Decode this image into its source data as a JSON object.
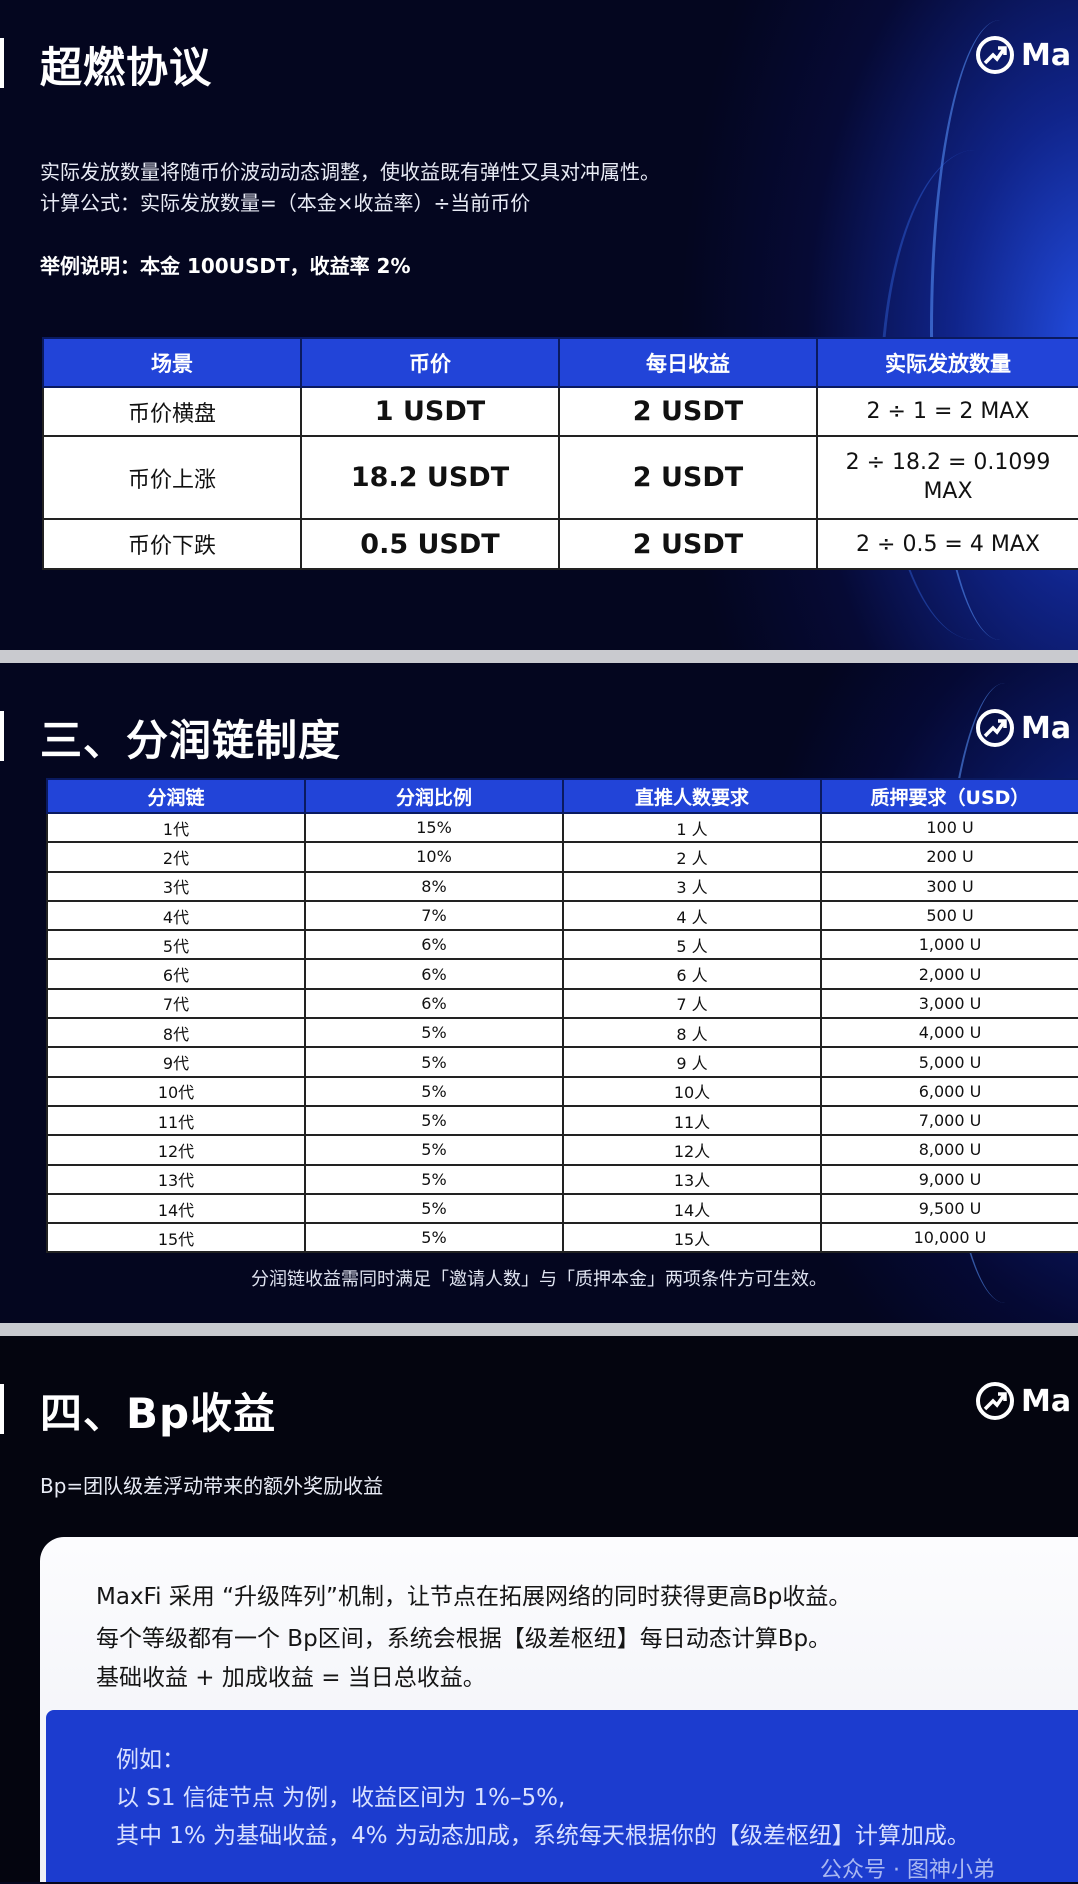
{
  "brand": {
    "logo_text": "Ma",
    "logo_icon": "trend-up-circle-icon"
  },
  "colors": {
    "header_blue": "#2244d8",
    "background": "#05071e",
    "card_blue": "#1c3ccf"
  },
  "section1": {
    "title": "超燃协议",
    "desc1": "实际发放数量将随币价波动动态调整，使收益既有弹性又具对冲属性。",
    "desc2": "计算公式：实际发放数量=（本金×收益率）÷当前币价",
    "example": "举例说明：本金 100USDT，收益率 2%",
    "table": {
      "headers": [
        "场景",
        "币价",
        "每日收益",
        "实际发放数量"
      ],
      "rows": [
        [
          "币价横盘",
          "1 USDT",
          "2 USDT",
          "2 ÷ 1 = 2 MAX"
        ],
        [
          "币价上涨",
          "18.2 USDT",
          "2 USDT",
          "2 ÷ 18.2 = 0.1099 MAX"
        ],
        [
          "币价下跌",
          "0.5 USDT",
          "2 USDT",
          "2 ÷ 0.5 = 4 MAX"
        ]
      ]
    }
  },
  "section2": {
    "title": "三、分润链制度",
    "table": {
      "headers": [
        "分润链",
        "分润比例",
        "直推人数要求",
        "质押要求（USD）"
      ],
      "rows": [
        [
          "1代",
          "15%",
          "1 人",
          "100 U"
        ],
        [
          "2代",
          "10%",
          "2 人",
          "200 U"
        ],
        [
          "3代",
          "8%",
          "3 人",
          "300 U"
        ],
        [
          "4代",
          "7%",
          "4 人",
          "500 U"
        ],
        [
          "5代",
          "6%",
          "5 人",
          "1,000 U"
        ],
        [
          "6代",
          "6%",
          "6 人",
          "2,000 U"
        ],
        [
          "7代",
          "6%",
          "7 人",
          "3,000 U"
        ],
        [
          "8代",
          "5%",
          "8 人",
          "4,000 U"
        ],
        [
          "9代",
          "5%",
          "9 人",
          "5,000 U"
        ],
        [
          "10代",
          "5%",
          "10人",
          "6,000 U"
        ],
        [
          "11代",
          "5%",
          "11人",
          "7,000 U"
        ],
        [
          "12代",
          "5%",
          "12人",
          "8,000 U"
        ],
        [
          "13代",
          "5%",
          "13人",
          "9,000 U"
        ],
        [
          "14代",
          "5%",
          "14人",
          "9,500 U"
        ],
        [
          "15代",
          "5%",
          "15人",
          "10,000 U"
        ]
      ]
    },
    "note": "分润链收益需同时满足「邀请人数」与「质押本金」两项条件方可生效。"
  },
  "section3": {
    "title": "四、Bp收益",
    "subtitle": "Bp=团队级差浮动带来的额外奖励收益",
    "card_lines": [
      "MaxFi 采用 “升级阵列”机制，让节点在拓展网络的同时获得更高Bp收益。",
      "每个等级都有一个 Bp区间，系统会根据【级差枢纽】每日动态计算Bp。",
      "基础收益 + 加成收益 = 当日总收益。"
    ],
    "example_lines": [
      "例如：",
      "以 S1 信徒节点 为例，收益区间为 1%–5%,",
      "其中 1% 为基础收益，4% 为动态加成，系统每天根据你的【级差枢纽】计算加成。"
    ],
    "watermark": "公众号 · 图神小弟"
  }
}
